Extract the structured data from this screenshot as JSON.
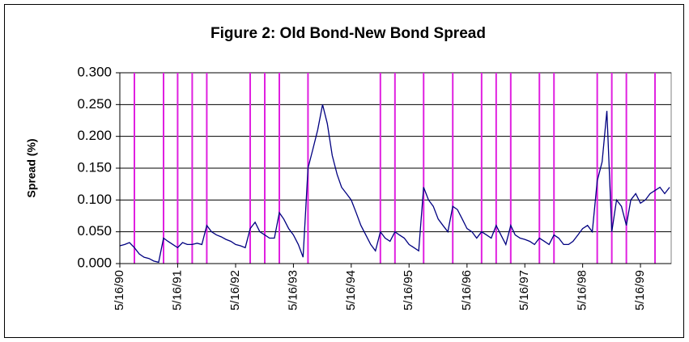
{
  "chart_data": {
    "type": "line",
    "title": "Figure 2: Old Bond-New Bond Spread",
    "y_label": "Spread (%)",
    "x": [
      "5/16/90",
      "6/16/90",
      "7/16/90",
      "8/16/90",
      "9/16/90",
      "10/16/90",
      "11/16/90",
      "12/16/90",
      "1/16/91",
      "2/16/91",
      "3/16/91",
      "4/16/91",
      "5/16/91",
      "6/16/91",
      "7/16/91",
      "8/16/91",
      "9/16/91",
      "10/16/91",
      "11/16/91",
      "12/16/91",
      "1/16/92",
      "2/16/92",
      "3/16/92",
      "4/16/92",
      "5/16/92",
      "6/16/92",
      "7/16/92",
      "8/16/92",
      "9/16/92",
      "10/16/92",
      "11/16/92",
      "12/16/92",
      "1/16/93",
      "2/16/93",
      "3/16/93",
      "4/16/93",
      "5/16/93",
      "6/16/93",
      "7/16/93",
      "8/16/93",
      "9/16/93",
      "10/16/93",
      "11/16/93",
      "12/16/93",
      "1/16/94",
      "2/16/94",
      "3/16/94",
      "4/16/94",
      "5/16/94",
      "6/16/94",
      "7/16/94",
      "8/16/94",
      "9/16/94",
      "10/16/94",
      "11/16/94",
      "12/16/94",
      "1/16/95",
      "2/16/95",
      "3/16/95",
      "4/16/95",
      "5/16/95",
      "6/16/95",
      "7/16/95",
      "8/16/95",
      "9/16/95",
      "10/16/95",
      "11/16/95",
      "12/16/95",
      "1/16/96",
      "2/16/96",
      "3/16/96",
      "4/16/96",
      "5/16/96",
      "6/16/96",
      "7/16/96",
      "8/16/96",
      "9/16/96",
      "10/16/96",
      "11/16/96",
      "12/16/96",
      "1/16/97",
      "2/16/97",
      "3/16/97",
      "4/16/97",
      "5/16/97",
      "6/16/97",
      "7/16/97",
      "8/16/97",
      "9/16/97",
      "10/16/97",
      "11/16/97",
      "12/16/97",
      "1/16/98",
      "2/16/98",
      "3/16/98",
      "4/16/98",
      "5/16/98",
      "6/16/98",
      "7/16/98",
      "8/16/98",
      "9/16/98",
      "10/16/98",
      "11/16/98",
      "12/16/98",
      "1/16/99",
      "2/16/99",
      "3/16/99",
      "4/16/99",
      "5/16/99",
      "6/16/99",
      "7/16/99",
      "8/16/99",
      "9/16/99",
      "10/16/99",
      "11/16/99"
    ],
    "series": [
      {
        "name": "Spread",
        "color": "#000080",
        "values": [
          0.028,
          0.03,
          0.033,
          0.025,
          0.015,
          0.01,
          0.008,
          0.004,
          0.002,
          0.04,
          0.035,
          0.03,
          0.025,
          0.033,
          0.03,
          0.03,
          0.032,
          0.03,
          0.06,
          0.05,
          0.045,
          0.042,
          0.038,
          0.035,
          0.03,
          0.028,
          0.025,
          0.055,
          0.065,
          0.05,
          0.045,
          0.04,
          0.04,
          0.08,
          0.07,
          0.055,
          0.045,
          0.03,
          0.01,
          0.15,
          0.18,
          0.21,
          0.25,
          0.22,
          0.17,
          0.14,
          0.12,
          0.11,
          0.1,
          0.08,
          0.06,
          0.045,
          0.03,
          0.02,
          0.05,
          0.04,
          0.035,
          0.05,
          0.045,
          0.04,
          0.03,
          0.025,
          0.02,
          0.12,
          0.1,
          0.09,
          0.07,
          0.06,
          0.05,
          0.09,
          0.085,
          0.07,
          0.055,
          0.05,
          0.04,
          0.05,
          0.045,
          0.04,
          0.06,
          0.045,
          0.03,
          0.06,
          0.045,
          0.04,
          0.038,
          0.035,
          0.03,
          0.04,
          0.035,
          0.03,
          0.045,
          0.04,
          0.03,
          0.03,
          0.035,
          0.045,
          0.055,
          0.06,
          0.05,
          0.13,
          0.16,
          0.24,
          0.05,
          0.1,
          0.09,
          0.06,
          0.1,
          0.11,
          0.095,
          0.1,
          0.11,
          0.115,
          0.12,
          0.11,
          0.12
        ]
      }
    ],
    "markers": {
      "color": "#e020e0",
      "x": [
        "8/16/90",
        "2/16/91",
        "5/16/91",
        "8/16/91",
        "11/16/91",
        "8/16/92",
        "11/16/92",
        "2/16/93",
        "8/16/93",
        "11/16/94",
        "2/16/95",
        "8/16/95",
        "2/16/96",
        "8/16/96",
        "11/16/96",
        "2/16/97",
        "8/16/97",
        "11/16/97",
        "8/16/98",
        "11/16/98",
        "2/16/99",
        "8/16/99"
      ]
    },
    "xlim": [
      "5/16/90",
      "11/26/99"
    ],
    "xticks": [
      "5/16/90",
      "5/16/91",
      "5/16/92",
      "5/16/93",
      "5/16/94",
      "5/16/95",
      "5/16/96",
      "5/16/97",
      "5/16/98",
      "5/16/99"
    ],
    "ylim": [
      0,
      0.3
    ],
    "yticks": [
      {
        "value": 0,
        "label": "0.000"
      },
      {
        "value": 0.05,
        "label": "0.050"
      },
      {
        "value": 0.1,
        "label": "0.100"
      },
      {
        "value": 0.15,
        "label": "0.150"
      },
      {
        "value": 0.2,
        "label": "0.200"
      },
      {
        "value": 0.25,
        "label": "0.250"
      },
      {
        "value": 0.3,
        "label": "0.300"
      }
    ],
    "grid": true
  }
}
